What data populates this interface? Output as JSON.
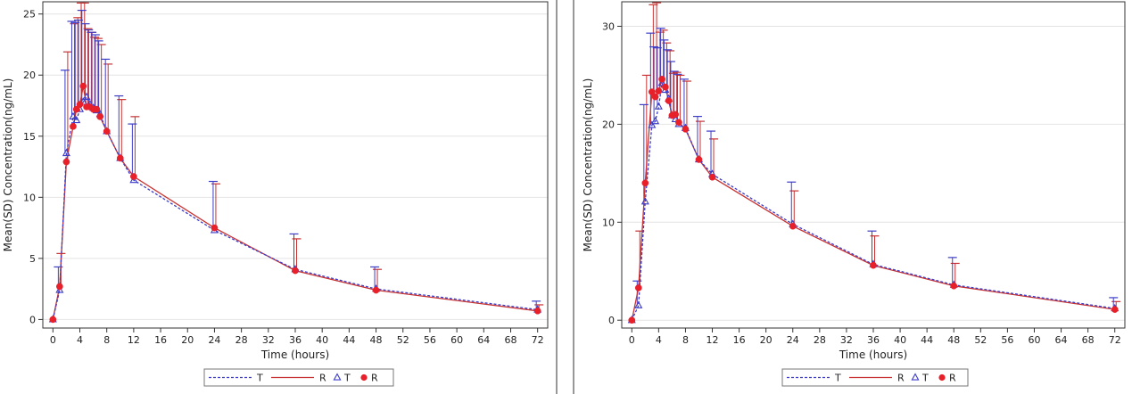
{
  "colors": {
    "T": "#3d3dc8",
    "R": "#c83232",
    "R_marker": "#e8202a",
    "grid": "#e4e4e4",
    "axis": "#333333",
    "panel_divider": "#555555"
  },
  "chart_data": [
    {
      "type": "line",
      "title": "",
      "xlabel": "Time (hours)",
      "ylabel": "Mean(SD) Concentration(ng/mL)",
      "xlim": [
        -1.5,
        73.5
      ],
      "ylim": [
        -0.7,
        26
      ],
      "xticks": [
        0,
        4,
        8,
        12,
        16,
        20,
        24,
        28,
        32,
        36,
        40,
        44,
        48,
        52,
        56,
        60,
        64,
        68,
        72
      ],
      "yticks": [
        0,
        5,
        10,
        15,
        20,
        25
      ],
      "grid": "horizontal",
      "legend_position": "bottom-center",
      "legend": [
        {
          "label": "T",
          "kind": "line",
          "style": "dashed",
          "color": "#3d3dc8"
        },
        {
          "label": "R",
          "kind": "line",
          "style": "solid",
          "color": "#c83232"
        },
        {
          "label": "T",
          "kind": "marker",
          "marker": "open-triangle",
          "color": "#3d3dc8"
        },
        {
          "label": "R",
          "kind": "marker",
          "marker": "filled-circle",
          "color": "#e8202a"
        }
      ],
      "series": [
        {
          "id": "T",
          "x": [
            0,
            1,
            2,
            3,
            3.5,
            4,
            4.5,
            5,
            5.5,
            6,
            6.5,
            7,
            8,
            10,
            12,
            24,
            36,
            48,
            72
          ],
          "y": [
            0,
            2.4,
            13.6,
            16.6,
            16.3,
            17.2,
            17.8,
            18.2,
            17.6,
            17.3,
            17.1,
            16.8,
            15.4,
            13.2,
            11.4,
            7.3,
            4.1,
            2.5,
            0.8
          ],
          "error": [
            0,
            1.9,
            6.8,
            7.8,
            8.0,
            7.3,
            7.5,
            6.0,
            6.1,
            6.2,
            6.2,
            6.0,
            5.9,
            5.1,
            4.6,
            4.0,
            2.9,
            1.8,
            0.7
          ]
        },
        {
          "id": "R",
          "x": [
            0,
            1,
            2,
            3,
            3.5,
            4,
            4.5,
            5,
            5.5,
            6,
            6.5,
            7,
            8,
            10,
            12,
            24,
            36,
            48,
            72
          ],
          "y": [
            0,
            2.7,
            12.9,
            15.8,
            17.2,
            17.6,
            19.1,
            17.4,
            17.4,
            17.2,
            17.2,
            16.6,
            15.4,
            13.2,
            11.7,
            7.5,
            4.0,
            2.4,
            0.7
          ],
          "error": [
            0,
            2.7,
            9.0,
            8.4,
            7.5,
            8.3,
            6.8,
            6.4,
            6.1,
            5.9,
            5.8,
            5.9,
            5.5,
            4.8,
            4.9,
            3.6,
            2.6,
            1.7,
            0.5
          ]
        }
      ]
    },
    {
      "type": "line",
      "title": "",
      "xlabel": "Time (hours)",
      "ylabel": "Mean(SD) Concentration(ng/mL)",
      "xlim": [
        -1.5,
        73.5
      ],
      "ylim": [
        -0.8,
        32.5
      ],
      "xticks": [
        0,
        4,
        8,
        12,
        16,
        20,
        24,
        28,
        32,
        36,
        40,
        44,
        48,
        52,
        56,
        60,
        64,
        68,
        72
      ],
      "yticks": [
        0,
        10,
        20,
        30
      ],
      "grid": "horizontal",
      "legend_position": "bottom-center",
      "legend": [
        {
          "label": "T",
          "kind": "line",
          "style": "dashed",
          "color": "#3d3dc8"
        },
        {
          "label": "R",
          "kind": "line",
          "style": "solid",
          "color": "#c83232"
        },
        {
          "label": "T",
          "kind": "marker",
          "marker": "open-triangle",
          "color": "#3d3dc8"
        },
        {
          "label": "R",
          "kind": "marker",
          "marker": "filled-circle",
          "color": "#e8202a"
        }
      ],
      "series": [
        {
          "id": "T",
          "x": [
            0,
            1,
            2,
            3,
            3.5,
            4,
            4.5,
            5,
            5.5,
            6,
            6.5,
            7,
            8,
            10,
            12,
            24,
            36,
            48,
            72
          ],
          "y": [
            0,
            1.5,
            12.1,
            19.9,
            20.3,
            21.8,
            24.2,
            23.5,
            22.6,
            20.9,
            20.5,
            20.0,
            19.6,
            16.4,
            14.9,
            9.8,
            5.7,
            3.6,
            1.2
          ],
          "error": [
            0,
            2.5,
            9.9,
            9.4,
            7.6,
            6.0,
            5.6,
            5.1,
            5.0,
            5.5,
            4.9,
            5.1,
            5.0,
            4.4,
            4.4,
            4.3,
            3.4,
            2.8,
            1.1
          ]
        },
        {
          "id": "R",
          "x": [
            0,
            1,
            2,
            3,
            3.5,
            4,
            4.5,
            5,
            5.5,
            6,
            6.5,
            7,
            8,
            10,
            12,
            24,
            36,
            48,
            72
          ],
          "y": [
            0,
            3.3,
            14.0,
            23.3,
            22.8,
            23.4,
            24.6,
            23.8,
            22.4,
            20.9,
            21.0,
            20.2,
            19.5,
            16.4,
            14.6,
            9.6,
            5.6,
            3.5,
            1.1
          ],
          "error": [
            0,
            5.8,
            11.0,
            8.9,
            9.6,
            6.0,
            5.0,
            4.5,
            5.1,
            4.3,
            4.3,
            4.8,
            4.9,
            3.9,
            3.9,
            3.6,
            3.0,
            2.3,
            0.8
          ]
        }
      ]
    }
  ]
}
